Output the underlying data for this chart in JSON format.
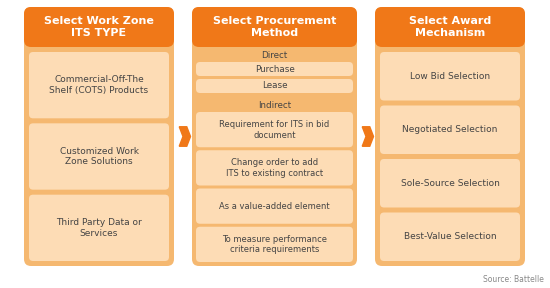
{
  "background_color": "#ffffff",
  "col1_title": "Select Work Zone\nITS TYPE",
  "col2_title": "Select Procurement\nMethod",
  "col3_title": "Select Award\nMechanism",
  "col_header_bg": "#F07818",
  "col_header_text": "#ffffff",
  "col_body_bg": "#F5B870",
  "col_item_bg": "#FDDCB5",
  "col_item_text": "#444444",
  "col1_items": [
    "Commercial-Off-The\nShelf (COTS) Products",
    "Customized Work\nZone Solutions",
    "Third Party Data or\nServices"
  ],
  "col2_items_direct": [
    "Purchase",
    "Lease"
  ],
  "col2_items_indirect": [
    "Requirement for ITS in bid\ndocument",
    "Change order to add\nITS to existing contract",
    "As a value-added element",
    "To measure performance\ncriteria requirements"
  ],
  "col3_items": [
    "Low Bid Selection",
    "Negotiated Selection",
    "Sole-Source Selection",
    "Best-Value Selection"
  ],
  "arrow_color": "#F07818",
  "source_text": "Source: Battelle",
  "direct_label": "Direct",
  "indirect_label": "Indirect"
}
